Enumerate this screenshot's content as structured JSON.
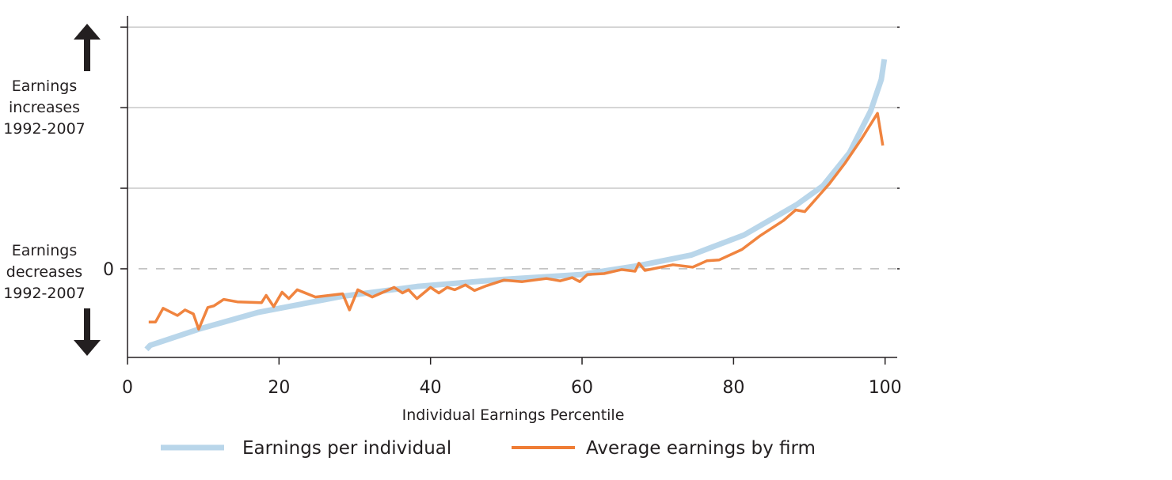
{
  "chart_data": {
    "type": "line",
    "title": "",
    "xlabel": "Individual Earnings Percentile",
    "ylabel": "",
    "xlim": [
      0,
      101.6
    ],
    "ylim": [
      -1.1,
      3.14
    ],
    "x_ticks": [
      0,
      20,
      40,
      60,
      80,
      100
    ],
    "y_ticks": [
      0,
      1,
      2,
      3
    ],
    "y_tick_labels": [
      "0",
      "",
      "",
      ""
    ],
    "grid": "horizontal",
    "zero_line": "dashed",
    "y_annotations": {
      "up": [
        "Earnings",
        "increases",
        "1992-2007"
      ],
      "down": [
        "Earnings",
        "decreases",
        "1992-2007"
      ]
    },
    "legend_placement": "bottom",
    "series": [
      {
        "name": "Earnings per individual",
        "color": "#b9d6ea",
        "x": [
          2.5,
          3,
          9.4,
          17.3,
          28.4,
          38.2,
          49.7,
          60,
          67.5,
          74.4,
          81.4,
          88.4,
          91.8,
          95.3,
          98.1,
          99.5,
          99.9
        ],
        "y": [
          -1.0,
          -0.95,
          -0.75,
          -0.54,
          -0.34,
          -0.22,
          -0.13,
          -0.07,
          0.04,
          0.17,
          0.42,
          0.8,
          1.03,
          1.44,
          1.96,
          2.35,
          2.6
        ]
      },
      {
        "name": "Average earnings by firm",
        "color": "#ef7d35",
        "x": [
          2.8,
          3.7,
          4.7,
          6.6,
          7.6,
          8.7,
          9.4,
          10.6,
          11.4,
          12.7,
          14.5,
          17.7,
          18.3,
          19.3,
          20.4,
          21.3,
          22.4,
          24.8,
          28.4,
          29.3,
          30.4,
          32.3,
          35.2,
          36.3,
          37.1,
          38.2,
          40.0,
          41.1,
          42.2,
          43.2,
          44.6,
          45.8,
          47.4,
          49.7,
          52.1,
          55.3,
          57.1,
          58.7,
          59.7,
          60.7,
          62.9,
          65.2,
          67.0,
          67.5,
          68.3,
          72.0,
          74.6,
          76.5,
          78.1,
          81.1,
          83.5,
          86.6,
          88.2,
          89.4,
          92.6,
          94.7,
          96.8,
          99.0,
          99.7
        ],
        "y": [
          -0.66,
          -0.66,
          -0.49,
          -0.58,
          -0.51,
          -0.56,
          -0.75,
          -0.48,
          -0.46,
          -0.38,
          -0.41,
          -0.42,
          -0.33,
          -0.47,
          -0.29,
          -0.37,
          -0.26,
          -0.35,
          -0.31,
          -0.51,
          -0.26,
          -0.35,
          -0.23,
          -0.3,
          -0.26,
          -0.37,
          -0.23,
          -0.3,
          -0.23,
          -0.26,
          -0.2,
          -0.27,
          -0.21,
          -0.14,
          -0.16,
          -0.12,
          -0.15,
          -0.11,
          -0.16,
          -0.07,
          -0.06,
          -0.01,
          -0.03,
          0.07,
          -0.02,
          0.05,
          0.02,
          0.1,
          0.11,
          0.24,
          0.41,
          0.6,
          0.73,
          0.71,
          1.05,
          1.31,
          1.6,
          1.93,
          1.53
        ]
      }
    ]
  }
}
